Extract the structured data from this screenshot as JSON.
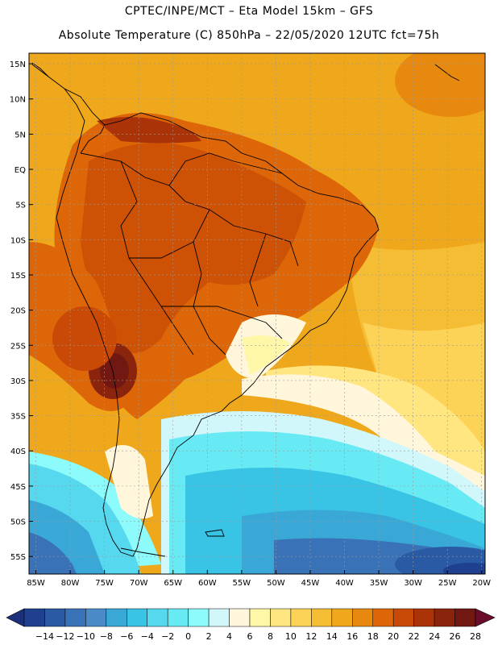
{
  "header": {
    "line1": "CPTEC/INPE/MCT –  Eta Model 15km – GFS",
    "line2": "Absolute Temperature (C) 850hPa – 22/05/2020 12UTC fct=75h"
  },
  "map": {
    "lat_labels": [
      "15N",
      "10N",
      "5N",
      "EQ",
      "5S",
      "10S",
      "15S",
      "20S",
      "25S",
      "30S",
      "35S",
      "40S",
      "45S",
      "50S",
      "55S"
    ],
    "lon_labels": [
      "85W",
      "80W",
      "75W",
      "70W",
      "65W",
      "60W",
      "55W",
      "50W",
      "45W",
      "40W",
      "35W",
      "30W",
      "25W",
      "20W"
    ],
    "lat_range": [
      16.5,
      -57.5
    ],
    "lon_range": [
      -86,
      -19.5
    ]
  },
  "colorbar": {
    "labels": [
      "-14",
      "-12",
      "-10",
      "-8",
      "-6",
      "-4",
      "-2",
      "0",
      "2",
      "4",
      "6",
      "8",
      "10",
      "12",
      "14",
      "16",
      "18",
      "20",
      "22",
      "24",
      "26",
      "28"
    ],
    "colors": [
      "#1f3f8f",
      "#2a5aa3",
      "#3a72b7",
      "#4a8bc7",
      "#3aa8d6",
      "#39c3e4",
      "#56d8ee",
      "#68eaf5",
      "#8dfbfb",
      "#d2f7fb",
      "#fff6dc",
      "#fff7a8",
      "#ffe680",
      "#fcd257",
      "#f5bd33",
      "#efa81c",
      "#e8890f",
      "#dd6708",
      "#c84a06",
      "#aa3308",
      "#8a240c",
      "#721812"
    ]
  }
}
